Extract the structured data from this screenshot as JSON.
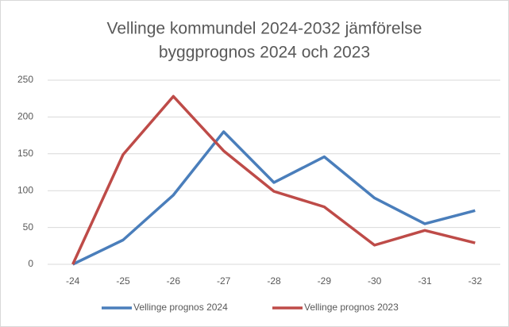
{
  "chart_data": {
    "type": "line",
    "title": [
      "Vellinge kommundel 2024-2032 jämförelse",
      "byggprognos 2024 och 2023"
    ],
    "categories": [
      "-24",
      "-25",
      "-26",
      "-27",
      "-28",
      "-29",
      "-30",
      "-31",
      "-32"
    ],
    "series": [
      {
        "name": "Vellinge prognos 2024",
        "color": "#4a7ebb",
        "values": [
          0,
          33,
          94,
          180,
          111,
          146,
          90,
          55,
          73
        ]
      },
      {
        "name": "Vellinge prognos 2023",
        "color": "#be4b48",
        "values": [
          0,
          149,
          228,
          154,
          99,
          78,
          26,
          46,
          29
        ]
      }
    ],
    "ylim": [
      0,
      250
    ],
    "yticks": [
      0,
      50,
      100,
      150,
      200,
      250
    ],
    "grid": true,
    "legend": "bottom"
  }
}
